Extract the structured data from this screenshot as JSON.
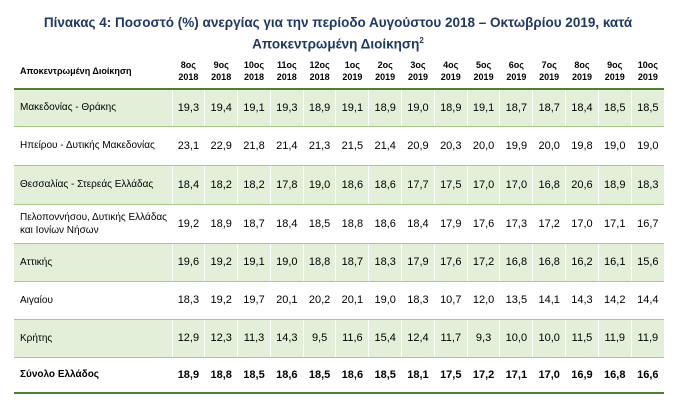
{
  "title_line1": "Πίνακας 4: Ποσοστό (%) ανεργίας για την περίοδο Αυγούστου 2018 – Οκτωβρίου 2019, κατά",
  "title_line2": "Αποκεντρωμένη Διοίκηση",
  "title_sup": "2",
  "header_first": "Αποκεντρωμένη Διοίκηση",
  "columns": [
    {
      "m": "8ος",
      "y": "2018"
    },
    {
      "m": "9ος",
      "y": "2018"
    },
    {
      "m": "10ος",
      "y": "2018"
    },
    {
      "m": "11ος",
      "y": "2018"
    },
    {
      "m": "12ος",
      "y": "2018"
    },
    {
      "m": "1ος",
      "y": "2019"
    },
    {
      "m": "2ος",
      "y": "2019"
    },
    {
      "m": "3ος",
      "y": "2019"
    },
    {
      "m": "4ος",
      "y": "2019"
    },
    {
      "m": "5ος",
      "y": "2019"
    },
    {
      "m": "6ος",
      "y": "2019"
    },
    {
      "m": "7ος",
      "y": "2019"
    },
    {
      "m": "8ος",
      "y": "2019"
    },
    {
      "m": "9ος",
      "y": "2019"
    },
    {
      "m": "10ος",
      "y": "2019"
    }
  ],
  "rows": [
    {
      "name": "Μακεδονίας - Θράκης",
      "values": [
        "19,3",
        "19,4",
        "19,1",
        "19,3",
        "18,9",
        "19,1",
        "18,9",
        "19,0",
        "18,9",
        "19,1",
        "18,7",
        "18,7",
        "18,4",
        "18,5",
        "18,5"
      ]
    },
    {
      "name": "Ηπείρου - Δυτικής Μακεδονίας",
      "values": [
        "23,1",
        "22,9",
        "21,8",
        "21,4",
        "21,3",
        "21,5",
        "21,4",
        "20,9",
        "20,3",
        "20,0",
        "19,9",
        "20,0",
        "19,8",
        "19,0",
        "19,0"
      ]
    },
    {
      "name": "Θεσσαλίας - Στερεάς Ελλάδας",
      "values": [
        "18,4",
        "18,2",
        "18,2",
        "17,8",
        "19,0",
        "18,6",
        "18,6",
        "17,7",
        "17,5",
        "17,0",
        "17,0",
        "16,8",
        "20,6",
        "18,9",
        "18,3"
      ]
    },
    {
      "name": "Πελοποννήσου, Δυτικής Ελλάδας και Ιονίων Νήσων",
      "values": [
        "19,2",
        "18,9",
        "18,7",
        "18,4",
        "18,5",
        "18,8",
        "18,6",
        "18,4",
        "17,9",
        "17,6",
        "17,3",
        "17,2",
        "17,0",
        "17,1",
        "16,7"
      ]
    },
    {
      "name": "Αττικής",
      "values": [
        "19,6",
        "19,2",
        "19,1",
        "19,0",
        "18,8",
        "18,7",
        "18,3",
        "17,9",
        "17,6",
        "17,2",
        "16,8",
        "16,8",
        "16,2",
        "16,1",
        "15,6"
      ]
    },
    {
      "name": "Αιγαίου",
      "values": [
        "18,3",
        "19,2",
        "19,7",
        "20,1",
        "20,2",
        "20,1",
        "19,0",
        "18,3",
        "10,7",
        "12,0",
        "13,5",
        "14,1",
        "14,3",
        "14,2",
        "14,4"
      ]
    },
    {
      "name": "Κρήτης",
      "values": [
        "12,9",
        "12,3",
        "11,3",
        "14,3",
        "9,5",
        "11,6",
        "15,4",
        "12,4",
        "11,7",
        "9,3",
        "10,0",
        "10,0",
        "11,5",
        "11,9",
        "11,9"
      ]
    },
    {
      "name": "Σύνολο Ελλάδος",
      "values": [
        "18,9",
        "18,8",
        "18,5",
        "18,6",
        "18,5",
        "18,6",
        "18,5",
        "18,1",
        "17,5",
        "17,2",
        "17,1",
        "17,0",
        "16,9",
        "16,8",
        "16,6"
      ]
    }
  ]
}
